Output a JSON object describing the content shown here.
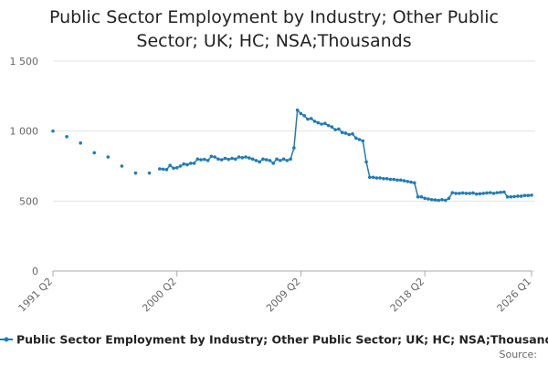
{
  "chart_data": {
    "type": "line",
    "title": "Public Sector Employment by Industry; Other Public Sector; UK; HC; NSA;Thousands",
    "source": "Source:",
    "categories": [
      "1991 Q2",
      null,
      null,
      null,
      null,
      null,
      null,
      null,
      null,
      null,
      null,
      null,
      null,
      null,
      null,
      null,
      null,
      null,
      null,
      null,
      null,
      null,
      null,
      null,
      null,
      null,
      null,
      null,
      null,
      null,
      null,
      null,
      null,
      null,
      null,
      null,
      "2000 Q2",
      null,
      null,
      null,
      null,
      null,
      null,
      null,
      null,
      null,
      null,
      null,
      null,
      null,
      null,
      null,
      null,
      null,
      null,
      null,
      null,
      null,
      null,
      null,
      null,
      null,
      null,
      null,
      null,
      null,
      null,
      null,
      null,
      null,
      null,
      null,
      "2009 Q2",
      null,
      null,
      null,
      null,
      null,
      null,
      null,
      null,
      null,
      null,
      null,
      null,
      null,
      null,
      null,
      null,
      null,
      null,
      null,
      null,
      null,
      null,
      null,
      null,
      null,
      null,
      null,
      null,
      null,
      null,
      null,
      null,
      null,
      null,
      null,
      "2018 Q2",
      null,
      null,
      null,
      null,
      null,
      null,
      null,
      null,
      null,
      null,
      null,
      null,
      null,
      null,
      null,
      null,
      null,
      null,
      null,
      null,
      null,
      null,
      null,
      null,
      null,
      null,
      null,
      null,
      null,
      null,
      "2026 Q1"
    ],
    "series": [
      {
        "name": "Public Sector Employment by Industry; Other Public Sector; UK; HC; NSA;Thousands",
        "color": "#1f7bb6",
        "values": [
          1000,
          null,
          null,
          null,
          960,
          null,
          null,
          null,
          915,
          null,
          null,
          null,
          845,
          null,
          null,
          null,
          815,
          null,
          null,
          null,
          750,
          null,
          null,
          null,
          700,
          null,
          null,
          null,
          700,
          null,
          null,
          730,
          728,
          725,
          755,
          735,
          738,
          750,
          765,
          760,
          770,
          770,
          800,
          795,
          798,
          790,
          820,
          815,
          800,
          795,
          805,
          798,
          805,
          800,
          815,
          810,
          815,
          808,
          800,
          790,
          780,
          800,
          795,
          790,
          770,
          800,
          790,
          800,
          790,
          800,
          880,
          1150,
          1125,
          1110,
          1085,
          1090,
          1070,
          1060,
          1050,
          1055,
          1040,
          1030,
          1010,
          1015,
          990,
          985,
          975,
          980,
          950,
          940,
          930,
          780,
          670,
          670,
          665,
          665,
          660,
          660,
          655,
          655,
          650,
          650,
          645,
          640,
          635,
          630,
          530,
          530,
          520,
          515,
          510,
          508,
          505,
          510,
          505,
          520,
          560,
          555,
          555,
          558,
          555,
          555,
          558,
          550,
          552,
          555,
          558,
          560,
          555,
          560,
          562,
          565,
          530,
          530,
          532,
          535,
          535,
          540,
          540,
          542
        ]
      }
    ],
    "ylim": [
      0,
      1500
    ],
    "yticks": [
      0,
      500,
      {
        "value": 1000,
        "label": "1 000"
      },
      {
        "value": 1500,
        "label": "1 500"
      }
    ],
    "grid": true
  }
}
